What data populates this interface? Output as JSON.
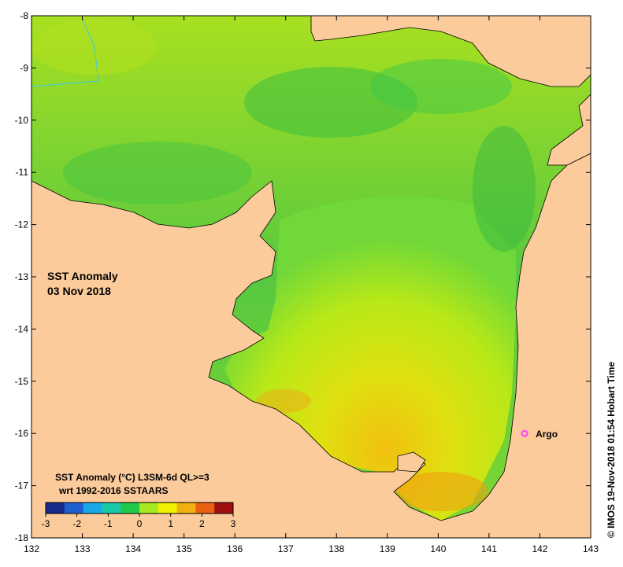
{
  "map": {
    "title": "SST Anomaly",
    "date": "03 Nov 2018",
    "lon_range": [
      132,
      143
    ],
    "lat_range": [
      -18,
      -8
    ],
    "x_ticks": [
      "132",
      "133",
      "134",
      "135",
      "136",
      "137",
      "138",
      "139",
      "140",
      "141",
      "142",
      "143"
    ],
    "y_ticks": [
      "-8",
      "-9",
      "-10",
      "-11",
      "-12",
      "-13",
      "-14",
      "-15",
      "-16",
      "-17",
      "-18"
    ],
    "colors": {
      "land": "#fbcb9b",
      "coast": "#000000",
      "anomaly_low": "#22a83a",
      "anomaly_mid": "#c8f000",
      "anomaly_high": "#f09a10"
    }
  },
  "colorbar": {
    "label_line1": "SST Anomaly (°C) L3SM-6d QL>=3",
    "label_line2": "wrt 1992-2016 SSTAARS",
    "ticks": [
      "-3",
      "-2",
      "-1",
      "0",
      "1",
      "2",
      "3"
    ],
    "range": [
      -3,
      3
    ],
    "colors": [
      "#1a2a8a",
      "#1f5fd0",
      "#18a8e8",
      "#18c8a8",
      "#22c84a",
      "#a8e820",
      "#f0f000",
      "#f0b010",
      "#e86010",
      "#a01010"
    ]
  },
  "marker": {
    "label": "Argo",
    "lon": 141.7,
    "lat": -16.0,
    "color": "#ff40ff"
  },
  "credit": "© IMOS 19-Nov-2018 01:54 Hobart Time"
}
